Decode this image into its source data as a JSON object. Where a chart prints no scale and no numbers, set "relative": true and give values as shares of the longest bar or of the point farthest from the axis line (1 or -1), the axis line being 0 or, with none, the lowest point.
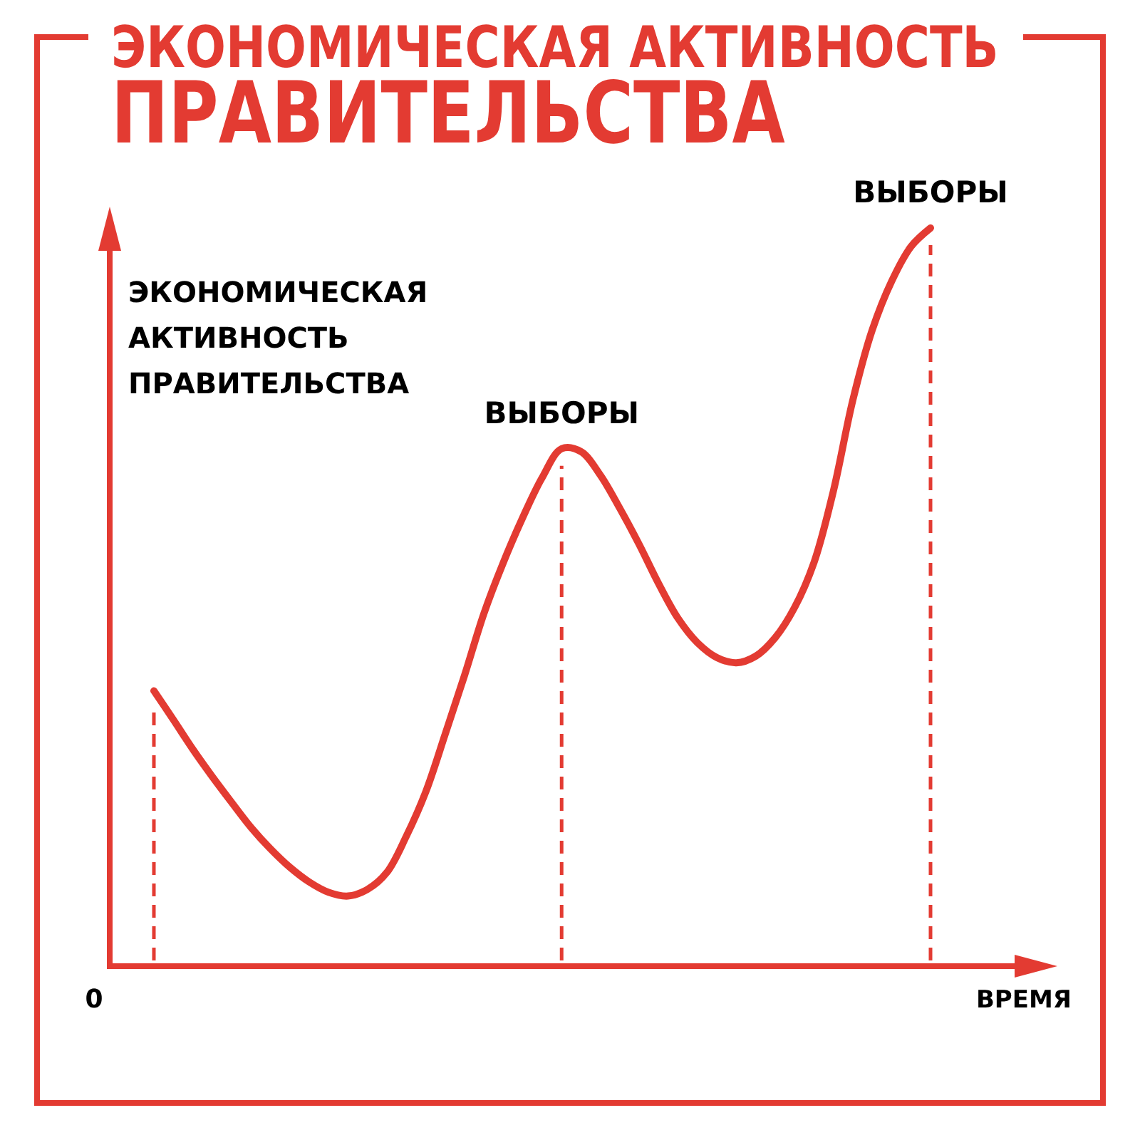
{
  "chart_data": {
    "type": "line",
    "title": "ЭКОНОМИЧЕСКАЯ АКТИВНОСТЬ ПРАВИТЕЛЬСТВА",
    "ylabel": "ЭКОНОМИЧЕСКАЯ АКТИВНОСТЬ ПРАВИТЕЛЬСТВА",
    "xlabel": "ВРЕМЯ",
    "relative": true,
    "categories": [
      null,
      null,
      null,
      null,
      null,
      null,
      null,
      null,
      null,
      null,
      null,
      null,
      null,
      null,
      null,
      null,
      null,
      null,
      null,
      null,
      null,
      null,
      null,
      null,
      null,
      null,
      null,
      null,
      null,
      null,
      null,
      null,
      null,
      null,
      null,
      null,
      null,
      null,
      null,
      null,
      null
    ],
    "values": [
      0.373,
      0.334,
      0.294,
      0.257,
      0.222,
      0.188,
      0.159,
      0.134,
      0.114,
      0.1,
      0.095,
      0.104,
      0.127,
      0.176,
      0.236,
      0.314,
      0.394,
      0.478,
      0.547,
      0.608,
      0.662,
      0.701,
      0.697,
      0.665,
      0.62,
      0.571,
      0.518,
      0.471,
      0.438,
      0.418,
      0.411,
      0.42,
      0.445,
      0.486,
      0.547,
      0.644,
      0.767,
      0.862,
      0.928,
      0.975,
      1
    ],
    "color": "#e33b32",
    "annotations": [
      "0",
      {
        "text": "ВЫБОРЫ",
        "y": 0.701
      },
      {
        "text": "ВЫБОРЫ",
        "y": 1
      }
    ]
  }
}
